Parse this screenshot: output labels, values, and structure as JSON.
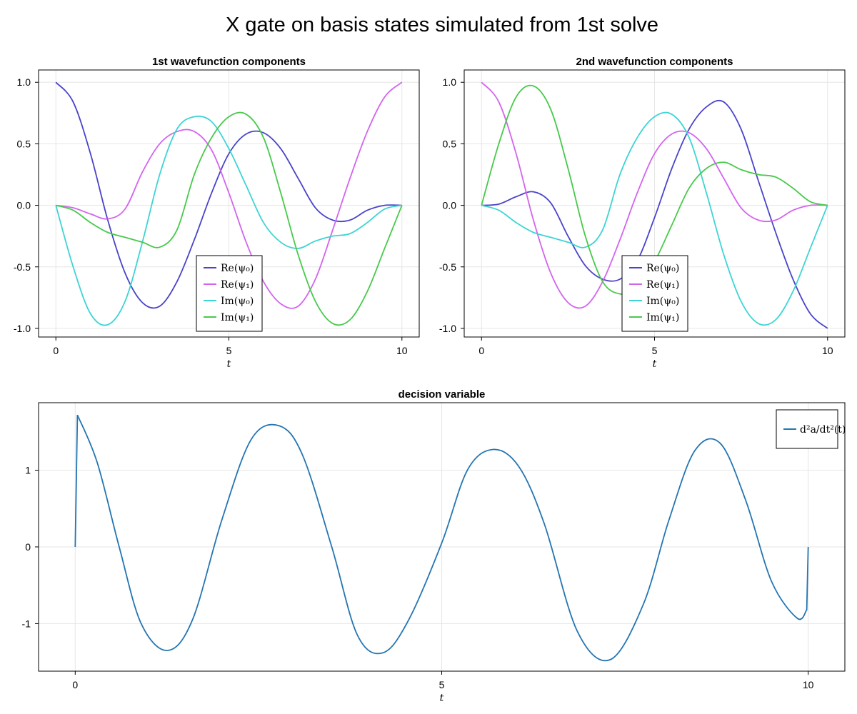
{
  "figure_title": "X gate on basis states simulated from 1st solve",
  "chart_data": [
    {
      "id": "panel1",
      "type": "line",
      "title": "1st wavefunction components",
      "xlabel": "t",
      "xlim": [
        -0.5,
        10.5
      ],
      "ylim": [
        -1.07,
        1.1
      ],
      "xticks": [
        0,
        5,
        10
      ],
      "yticks": [
        -1.0,
        -0.5,
        0.0,
        0.5,
        1.0
      ],
      "ytick_labels": [
        "-1.0",
        "-0.5",
        "0.0",
        "0.5",
        "1.0"
      ],
      "grid": true,
      "legend_position": "bottom-center",
      "x": [
        0,
        0.5,
        1,
        1.5,
        2,
        2.5,
        3,
        3.5,
        4,
        4.5,
        5,
        5.5,
        6,
        6.5,
        7,
        7.5,
        8,
        8.5,
        9,
        9.5,
        10
      ],
      "series": [
        {
          "name": "Re(ψ0)",
          "legend": "Re(ψ₀)",
          "color": "#4a43c9",
          "values": [
            1.0,
            0.84,
            0.42,
            -0.12,
            -0.55,
            -0.79,
            -0.82,
            -0.62,
            -0.28,
            0.1,
            0.42,
            0.58,
            0.59,
            0.46,
            0.22,
            -0.02,
            -0.12,
            -0.12,
            -0.04,
            0.0,
            0.0
          ]
        },
        {
          "name": "Re(ψ1)",
          "legend": "Re(ψ₁)",
          "color": "#d364ee",
          "values": [
            0.0,
            -0.02,
            -0.07,
            -0.11,
            -0.03,
            0.27,
            0.5,
            0.6,
            0.6,
            0.45,
            0.1,
            -0.3,
            -0.62,
            -0.8,
            -0.82,
            -0.6,
            -0.2,
            0.22,
            0.6,
            0.88,
            1.0
          ]
        },
        {
          "name": "Im(ψ0)",
          "legend": "Im(ψ₀)",
          "color": "#3ed4d4",
          "values": [
            0.0,
            -0.5,
            -0.88,
            -0.97,
            -0.78,
            -0.3,
            0.25,
            0.62,
            0.72,
            0.68,
            0.46,
            0.16,
            -0.14,
            -0.3,
            -0.35,
            -0.29,
            -0.25,
            -0.23,
            -0.14,
            -0.03,
            0.0
          ]
        },
        {
          "name": "Im(ψ1)",
          "legend": "Im(ψ₁)",
          "color": "#47c94a",
          "values": [
            0.0,
            -0.04,
            -0.14,
            -0.22,
            -0.26,
            -0.3,
            -0.34,
            -0.2,
            0.25,
            0.55,
            0.72,
            0.74,
            0.55,
            0.1,
            -0.4,
            -0.78,
            -0.96,
            -0.93,
            -0.7,
            -0.35,
            0.0
          ]
        }
      ]
    },
    {
      "id": "panel2",
      "type": "line",
      "title": "2nd wavefunction components",
      "xlabel": "t",
      "xlim": [
        -0.5,
        10.5
      ],
      "ylim": [
        -1.07,
        1.1
      ],
      "xticks": [
        0,
        5,
        10
      ],
      "yticks": [
        -1.0,
        -0.5,
        0.0,
        0.5,
        1.0
      ],
      "ytick_labels": [
        "-1.0",
        "-0.5",
        "0.0",
        "0.5",
        "1.0"
      ],
      "grid": true,
      "legend_position": "bottom-center",
      "x": [
        0,
        0.5,
        1,
        1.5,
        2,
        2.5,
        3,
        3.5,
        4,
        4.5,
        5,
        5.5,
        6,
        6.5,
        7,
        7.5,
        8,
        8.5,
        9,
        9.5,
        10
      ],
      "series": [
        {
          "name": "Re(ψ0)",
          "legend": "Re(ψ₀)",
          "color": "#4a43c9",
          "values": [
            0.0,
            0.01,
            0.07,
            0.11,
            0.02,
            -0.25,
            -0.49,
            -0.6,
            -0.6,
            -0.45,
            -0.1,
            0.3,
            0.62,
            0.8,
            0.84,
            0.62,
            0.2,
            -0.22,
            -0.6,
            -0.88,
            -1.0
          ]
        },
        {
          "name": "Re(ψ1)",
          "legend": "Re(ψ₁)",
          "color": "#d364ee",
          "values": [
            1.0,
            0.84,
            0.42,
            -0.12,
            -0.55,
            -0.79,
            -0.82,
            -0.62,
            -0.28,
            0.1,
            0.42,
            0.58,
            0.59,
            0.46,
            0.22,
            -0.02,
            -0.12,
            -0.12,
            -0.04,
            0.0,
            0.0
          ]
        },
        {
          "name": "Im(ψ0)",
          "legend": "Im(ψ₀)",
          "color": "#3ed4d4",
          "values": [
            0.0,
            -0.04,
            -0.14,
            -0.22,
            -0.26,
            -0.3,
            -0.34,
            -0.2,
            0.25,
            0.55,
            0.72,
            0.74,
            0.55,
            0.1,
            -0.4,
            -0.78,
            -0.96,
            -0.93,
            -0.7,
            -0.35,
            0.0
          ]
        },
        {
          "name": "Im(ψ1)",
          "legend": "Im(ψ₁)",
          "color": "#47c94a",
          "values": [
            0.0,
            0.5,
            0.88,
            0.97,
            0.78,
            0.3,
            -0.25,
            -0.62,
            -0.72,
            -0.68,
            -0.46,
            -0.16,
            0.14,
            0.3,
            0.35,
            0.29,
            0.25,
            0.23,
            0.14,
            0.03,
            0.0
          ]
        }
      ]
    },
    {
      "id": "panel3",
      "type": "line",
      "title": "decision variable",
      "xlabel": "t",
      "xlim": [
        -0.5,
        10.5
      ],
      "ylim": [
        -1.62,
        1.88
      ],
      "xticks": [
        0,
        5,
        10
      ],
      "yticks": [
        -1,
        0,
        1
      ],
      "ytick_labels": [
        "-1",
        "0",
        "1"
      ],
      "grid": true,
      "legend_position": "top-right",
      "x": [
        0,
        0.03,
        0.3,
        0.6,
        0.9,
        1.26,
        1.6,
        2.0,
        2.4,
        2.78,
        3.1,
        3.5,
        3.85,
        4.2,
        4.55,
        5.0,
        5.35,
        5.7,
        6.05,
        6.4,
        6.85,
        7.3,
        7.75,
        8.1,
        8.45,
        8.8,
        9.15,
        9.5,
        9.85,
        9.98,
        10.0
      ],
      "series": [
        {
          "name": "d²a/dt²(t)",
          "color": "#2375b2",
          "values": [
            0.0,
            1.72,
            1.1,
            0.0,
            -1.0,
            -1.35,
            -0.95,
            0.35,
            1.4,
            1.58,
            1.2,
            0.0,
            -1.15,
            -1.38,
            -0.95,
            0.05,
            1.0,
            1.27,
            1.05,
            0.3,
            -1.1,
            -1.47,
            -0.75,
            0.35,
            1.25,
            1.35,
            0.6,
            -0.45,
            -0.93,
            -0.82,
            0.0
          ]
        }
      ]
    }
  ]
}
